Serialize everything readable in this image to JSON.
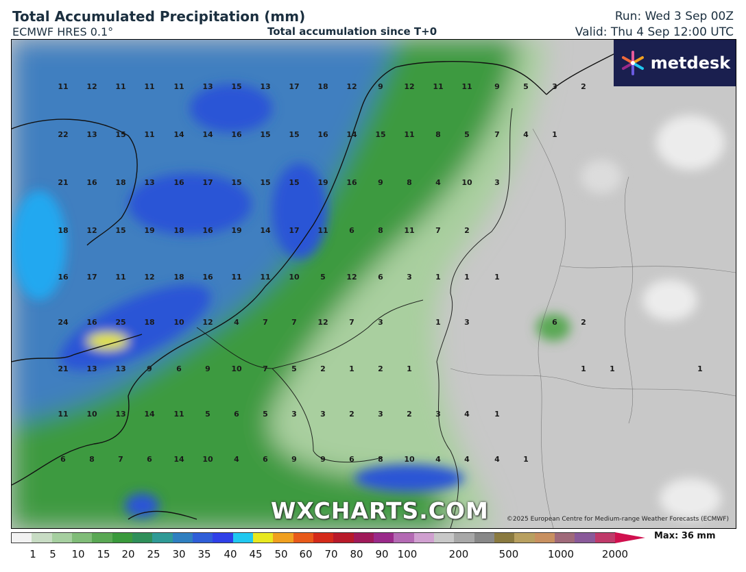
{
  "header": {
    "title": "Total Accumulated Precipitation (mm)",
    "model": "ECMWF HRES 0.1°",
    "subtitle": "Total accumulation since T+0",
    "run": "Run: Wed 3 Sep 00Z",
    "valid": "Valid: Thu 4 Sep 12:00 UTC"
  },
  "logo": {
    "text": "metdesk",
    "icon": "metdesk-star-icon"
  },
  "watermark": "WXCHARTS.COM",
  "copyright": "©2025 European Centre for Medium-range Weather Forecasts (ECMWF)",
  "legend": {
    "max_label": "Max: 36 mm",
    "ticks": [
      "1",
      "5",
      "10",
      "15",
      "20",
      "25",
      "30",
      "35",
      "40",
      "45",
      "50",
      "60",
      "70",
      "80",
      "90",
      "100",
      "200",
      "500",
      "1000",
      "2000"
    ],
    "colors": [
      "#f2f2f2",
      "#c8dcc4",
      "#a6cfa0",
      "#80bc78",
      "#5aa854",
      "#3a9a3c",
      "#2f8f5a",
      "#2f9a96",
      "#2f7fc0",
      "#2f5ed8",
      "#2f40e8",
      "#20c8f0",
      "#e8e820",
      "#f0a020",
      "#e85a1a",
      "#d42a1a",
      "#b81a2a",
      "#a01a5a",
      "#9a2a8a",
      "#b46ab4",
      "#d0a0d0",
      "#c8c8c8",
      "#a8a8a8",
      "#888888",
      "#8a7a40",
      "#b8a060",
      "#c89060",
      "#a06a7a",
      "#8a5a9a",
      "#c03a6a"
    ]
  },
  "colors": {
    "sea_heavy": "#2b55d6",
    "sea_moderate": "#3f7fc0",
    "land_moderate": "#3c9a40",
    "land_light": "#a9cf9f",
    "dry": "#c9c9c9",
    "brand": "#1a1f4f"
  },
  "values": [
    [
      "11",
      "12",
      "11",
      "11",
      "11",
      "13",
      "15",
      "13",
      "17",
      "18",
      "12",
      "9",
      "12",
      "11",
      "11",
      "9",
      "5",
      "3",
      "2"
    ],
    [
      "22",
      "13",
      "15",
      "11",
      "14",
      "14",
      "16",
      "15",
      "15",
      "16",
      "14",
      "15",
      "11",
      "8",
      "5",
      "7",
      "4",
      "1"
    ],
    [
      "21",
      "16",
      "18",
      "13",
      "16",
      "17",
      "15",
      "15",
      "15",
      "19",
      "16",
      "9",
      "8",
      "4",
      "10",
      "3"
    ],
    [
      "18",
      "12",
      "15",
      "19",
      "18",
      "16",
      "19",
      "14",
      "17",
      "11",
      "6",
      "8",
      "11",
      "7",
      "2"
    ],
    [
      "16",
      "17",
      "11",
      "12",
      "18",
      "16",
      "11",
      "11",
      "10",
      "5",
      "12",
      "6",
      "3",
      "1",
      "1",
      "1"
    ],
    [
      "24",
      "16",
      "25",
      "18",
      "10",
      "12",
      "4",
      "7",
      "7",
      "12",
      "7",
      "3",
      "1",
      "3",
      "6",
      "2"
    ],
    [
      "21",
      "13",
      "13",
      "9",
      "6",
      "9",
      "10",
      "7",
      "5",
      "2",
      "1",
      "2",
      "1",
      "1",
      "1",
      "1"
    ],
    [
      "11",
      "10",
      "13",
      "14",
      "11",
      "5",
      "6",
      "5",
      "3",
      "3",
      "2",
      "3",
      "2",
      "3",
      "4",
      "1"
    ],
    [
      "6",
      "8",
      "7",
      "6",
      "14",
      "10",
      "4",
      "6",
      "9",
      "9",
      "6",
      "8",
      "10",
      "4",
      "4",
      "4",
      "1"
    ]
  ]
}
